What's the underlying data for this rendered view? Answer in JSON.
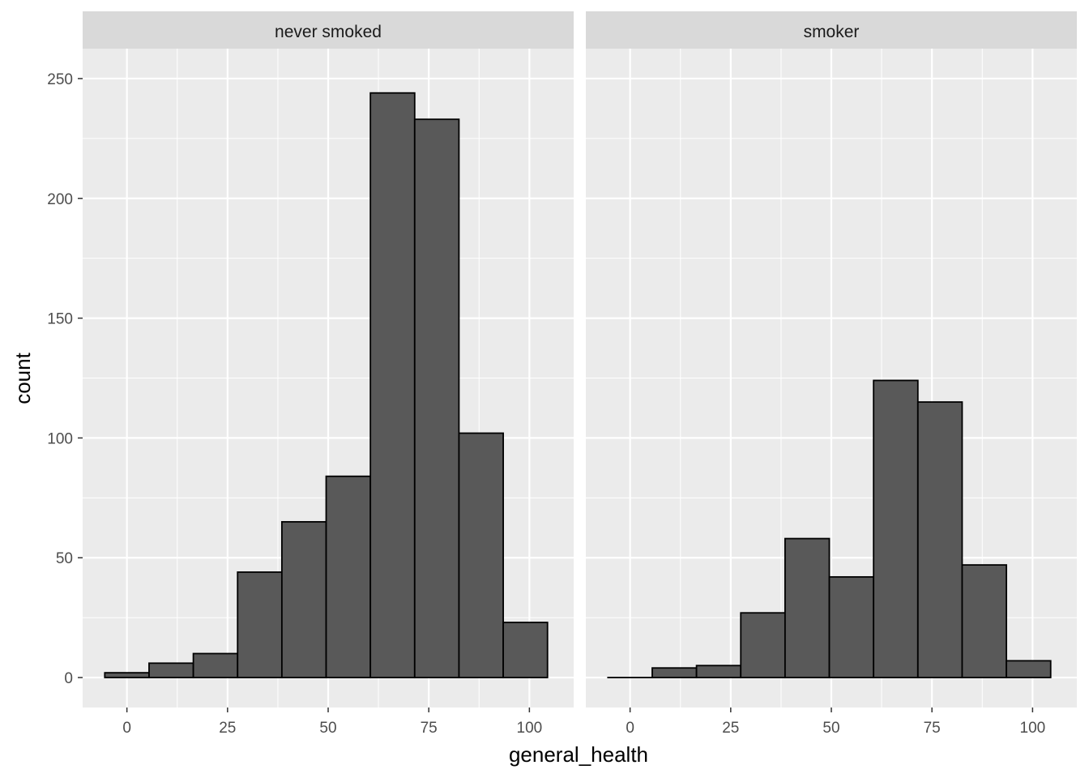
{
  "chart_data": {
    "type": "bar",
    "xlabel": "general_health",
    "ylabel": "count",
    "xlim": [
      -11,
      111
    ],
    "ylim": [
      -12.5,
      262.5
    ],
    "x_ticks": [
      0,
      25,
      50,
      75,
      100
    ],
    "y_ticks": [
      0,
      50,
      100,
      150,
      200,
      250
    ],
    "bin_edges": [
      -5.5,
      5.5,
      16.5,
      27.5,
      38.5,
      49.5,
      60.5,
      71.5,
      82.5,
      93.5,
      104.5
    ],
    "grid": true,
    "colors": {
      "panel_bg": "#EBEBEB",
      "strip_bg": "#D9D9D9",
      "bar_fill": "#595959",
      "bar_outline": "#000000",
      "grid": "#FFFFFF"
    },
    "facets": [
      {
        "name": "never smoked",
        "values": [
          2,
          6,
          10,
          44,
          65,
          84,
          244,
          233,
          102,
          23
        ]
      },
      {
        "name": "smoker",
        "values": [
          0,
          4,
          5,
          27,
          58,
          42,
          124,
          115,
          47,
          7
        ]
      }
    ]
  }
}
